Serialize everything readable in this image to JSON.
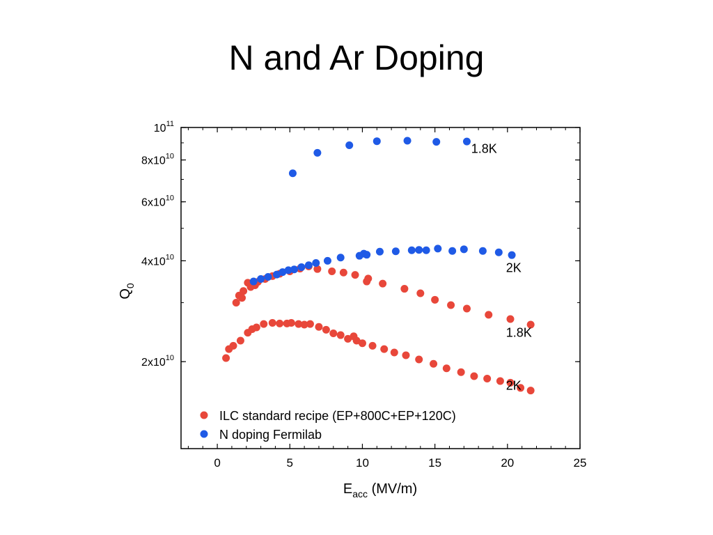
{
  "slide": {
    "title": "N and Ar Doping"
  },
  "colors": {
    "ilc": "#e8473a",
    "ndoping": "#1f5ae6"
  },
  "chart_data": {
    "type": "scatter",
    "xlabel_main": "E",
    "xlabel_sub": "acc",
    "xlabel_unit": " (MV/m)",
    "ylabel_main": "Q",
    "ylabel_sub": "0",
    "xlim": [
      -2.5,
      25
    ],
    "ylim": [
      11000000000,
      100000000000
    ],
    "y_scale": "log",
    "x_ticks": [
      0,
      5,
      10,
      15,
      20,
      25
    ],
    "y_ticks": [
      {
        "value": 20000000000,
        "mantissa": "2x10",
        "exp": "10"
      },
      {
        "value": 40000000000,
        "mantissa": "4x10",
        "exp": "10"
      },
      {
        "value": 60000000000,
        "mantissa": "6x10",
        "exp": "10"
      },
      {
        "value": 80000000000,
        "mantissa": "8x10",
        "exp": "10"
      },
      {
        "value": 100000000000,
        "mantissa": "10",
        "exp": "11"
      }
    ],
    "grid": false,
    "legend_position": "bottom-left",
    "legend": [
      {
        "label": "ILC standard recipe (EP+800C+EP+120C)",
        "color_key": "ilc"
      },
      {
        "label": "N doping Fermilab",
        "color_key": "ndoping"
      }
    ],
    "annotations": [
      {
        "text": "1.8K",
        "x": 17.5,
        "y": 84000000000
      },
      {
        "text": "2K",
        "x": 19.9,
        "y": 37000000000
      },
      {
        "text": "1.8K",
        "x": 19.9,
        "y": 23700000000
      },
      {
        "text": "2K",
        "x": 19.9,
        "y": 16500000000
      }
    ],
    "series": [
      {
        "color_key": "ilc",
        "x": [
          0.6,
          0.8,
          1.1,
          1.6,
          2.1,
          2.4,
          2.7,
          3.2,
          3.8,
          4.3,
          4.8,
          5.1,
          5.6,
          6.0,
          6.4,
          7.0,
          7.5,
          8.0,
          8.5,
          9.0,
          9.4,
          9.6,
          10.0,
          10.7,
          11.5,
          12.2,
          13.0,
          13.9,
          14.9,
          15.8,
          16.8,
          17.7,
          18.6,
          19.5,
          20.2,
          20.9,
          21.6
        ],
        "y": [
          20500000000,
          21800000000,
          22300000000,
          23100000000,
          24400000000,
          25000000000,
          25300000000,
          25900000000,
          26100000000,
          26000000000,
          26000000000,
          26100000000,
          25900000000,
          25800000000,
          25900000000,
          25400000000,
          24900000000,
          24300000000,
          24000000000,
          23400000000,
          23800000000,
          23100000000,
          22700000000,
          22300000000,
          21800000000,
          21300000000,
          20900000000,
          20300000000,
          19700000000,
          19100000000,
          18600000000,
          18100000000,
          17800000000,
          17500000000,
          17300000000,
          16700000000,
          16400000000
        ]
      },
      {
        "color_key": "ilc",
        "x": [
          1.3,
          1.5,
          1.7,
          1.8,
          2.1,
          2.3,
          2.6,
          2.8,
          3.3,
          3.8,
          4.3,
          5.0,
          5.7,
          6.3,
          6.9,
          7.9,
          8.7,
          9.5,
          10.3,
          10.4,
          11.4,
          12.9,
          14.0,
          15.0,
          16.1,
          17.2,
          18.7,
          20.2,
          21.6
        ],
        "y": [
          30000000000,
          31500000000,
          31000000000,
          32500000000,
          34400000000,
          33400000000,
          33800000000,
          34600000000,
          35300000000,
          36000000000,
          36600000000,
          37200000000,
          37900000000,
          38500000000,
          37800000000,
          37200000000,
          36900000000,
          36300000000,
          34700000000,
          35400000000,
          34200000000,
          33000000000,
          32000000000,
          30600000000,
          29500000000,
          28800000000,
          27600000000,
          26800000000,
          25800000000
        ]
      },
      {
        "color_key": "ndoping",
        "x": [
          2.5,
          3.0,
          3.5,
          4.1,
          4.5,
          4.9,
          5.3,
          5.8,
          6.3,
          6.8,
          7.6,
          8.5,
          9.8,
          10.1,
          10.3,
          11.2,
          12.3,
          13.4,
          13.9,
          14.4,
          15.2,
          16.2,
          17.0,
          18.3,
          19.4,
          20.3
        ],
        "y": [
          34700000000,
          35300000000,
          35800000000,
          36400000000,
          37000000000,
          37500000000,
          37700000000,
          38300000000,
          38800000000,
          39400000000,
          40000000000,
          40900000000,
          41400000000,
          42000000000,
          41700000000,
          42600000000,
          42700000000,
          43000000000,
          43100000000,
          43000000000,
          43500000000,
          42800000000,
          43300000000,
          42800000000,
          42400000000,
          41600000000
        ]
      },
      {
        "color_key": "ndoping",
        "x": [
          5.2,
          6.9,
          9.1,
          11.0,
          13.1,
          15.1,
          17.2
        ],
        "y": [
          73000000000,
          84000000000,
          88500000000,
          91000000000,
          91300000000,
          90600000000,
          90800000000
        ]
      }
    ]
  }
}
